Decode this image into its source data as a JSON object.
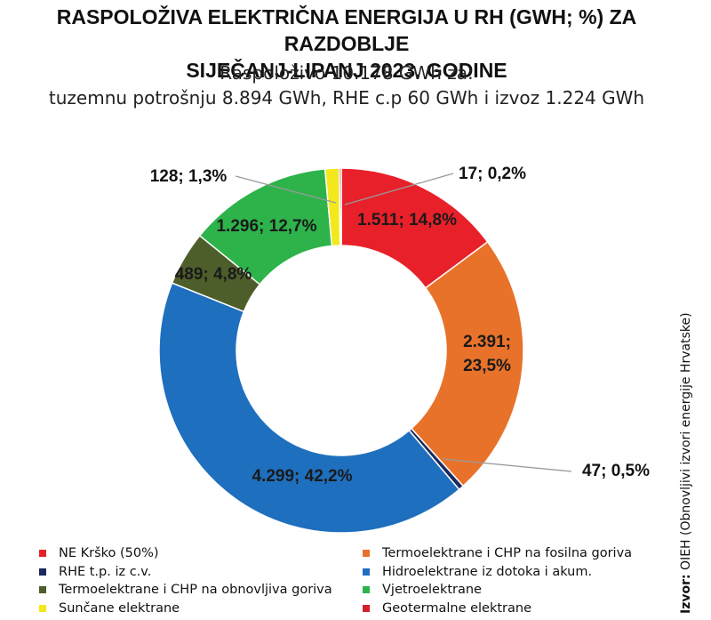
{
  "chart_data": {
    "type": "pie",
    "title": "RASPOLOŽIVA ELEKTRIČNA ENERGIJA U RH (GWH; %) ZA RAZDOBLJE SIJEČANJ-LIPANJ 2023. GODINE",
    "title_lines": [
      "RASPOLOŽIVA ELEKTRIČNA ENERGIJA U RH (GWH; %) ZA RAZDOBLJE",
      "SIJEČANJ-LIPANJ 2023. GODINE"
    ],
    "subtitle_lines": [
      "Raspoloživo 10.178 GWh za:",
      "tuzemnu potrošnju 8.894 GWh, RHE c.p 60 GWh i izvoz 1.224 GWh"
    ],
    "slices": [
      {
        "name": "NE Krško (50%)",
        "value": 1511,
        "label": "1.511; 14,8%",
        "color": "#e8202a"
      },
      {
        "name": "Termoelektrane i CHP na fosilna goriva",
        "value": 2391,
        "label_lines": [
          "2.391;",
          "23,5%"
        ],
        "color": "#e8722a"
      },
      {
        "name": "RHE t.p. iz c.v.",
        "value": 47,
        "label": "47; 0,5%",
        "color": "#1b2a5c"
      },
      {
        "name": "Hidroelektrane iz dotoka i akum.",
        "value": 4299,
        "label": "4.299; 42,2%",
        "color": "#1f6fbf"
      },
      {
        "name": "Termoelektrane i CHP na obnovljiva goriva",
        "value": 489,
        "label": "489; 4,8%",
        "color": "#4d5e2a"
      },
      {
        "name": "Vjetroelektrane",
        "value": 1296,
        "label": "1.296; 12,7%",
        "color": "#2db34a"
      },
      {
        "name": "Sunčane elektrane",
        "value": 128,
        "label": "128; 1,3%",
        "color": "#f2e81c"
      },
      {
        "name": "Geotermalne elektrane",
        "value": 17,
        "label": "17; 0,2%",
        "color": "#d4202a"
      }
    ],
    "legend_col1": [
      {
        "name": "NE Krško (50%)",
        "color": "#e8202a"
      },
      {
        "name": "RHE t.p. iz c.v.",
        "color": "#1b2a5c"
      },
      {
        "name": "Termoelektrane i CHP na obnovljiva goriva",
        "color": "#4d5e2a"
      },
      {
        "name": "Sunčane elektrane",
        "color": "#f2e81c"
      }
    ],
    "legend_col2": [
      {
        "name": "Termoelektrane i CHP na fosilna goriva",
        "color": "#e8722a"
      },
      {
        "name": "Hidroelektrane iz dotoka i akum.",
        "color": "#1f6fbf"
      },
      {
        "name": "Vjetroelektrane",
        "color": "#2db34a"
      },
      {
        "name": "Geotermalne elektrane",
        "color": "#d4202a"
      }
    ],
    "legend_placement": "bottom"
  },
  "source": {
    "prefix": "Izvor:",
    "text": " OIEH (Obnovljivi izvori energije Hrvatske)"
  }
}
